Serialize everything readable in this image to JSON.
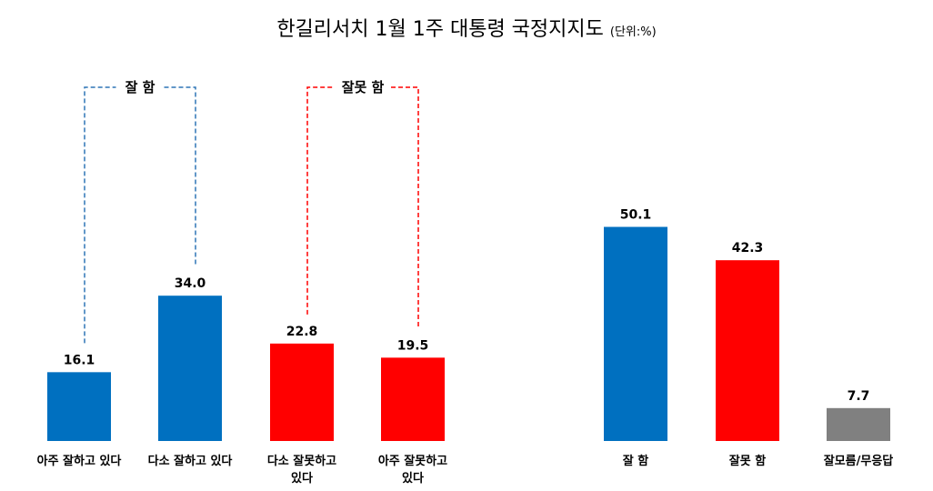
{
  "title": "한길리서치 1월 1주 대통령 국정지지도",
  "unit": "(단위:%)",
  "chart_data": [
    {
      "type": "bar",
      "categories": [
        "아주 잘하고 있다",
        "다소 잘하고 있다",
        "다소 잘못하고 있다",
        "아주 잘못하고 있다"
      ],
      "category_lines": [
        [
          "아주 잘하고 있다"
        ],
        [
          "다소 잘하고 있다"
        ],
        [
          "다소 잘못하고",
          "있다"
        ],
        [
          "아주 잘못하고",
          "있다"
        ]
      ],
      "values": [
        16.1,
        34.0,
        22.8,
        19.5
      ],
      "colors": [
        "#0070C0",
        "#0070C0",
        "#FF0000",
        "#FF0000"
      ],
      "groups": [
        {
          "label": "잘 함",
          "members": [
            0,
            1
          ],
          "color": "#2E75B6",
          "style": "dashed"
        },
        {
          "label": "잘못 함",
          "members": [
            2,
            3
          ],
          "color": "#FF0000",
          "style": "dashed"
        }
      ],
      "ylim": [
        0,
        55
      ]
    },
    {
      "type": "bar",
      "categories": [
        "잘 함",
        "잘못 함",
        "잘모름/무응답"
      ],
      "category_lines": [
        [
          "잘 함"
        ],
        [
          "잘못 함"
        ],
        [
          "잘모름/무응답"
        ]
      ],
      "values": [
        50.1,
        42.3,
        7.7
      ],
      "colors": [
        "#0070C0",
        "#FF0000",
        "#808080"
      ],
      "ylim": [
        0,
        55
      ]
    }
  ]
}
